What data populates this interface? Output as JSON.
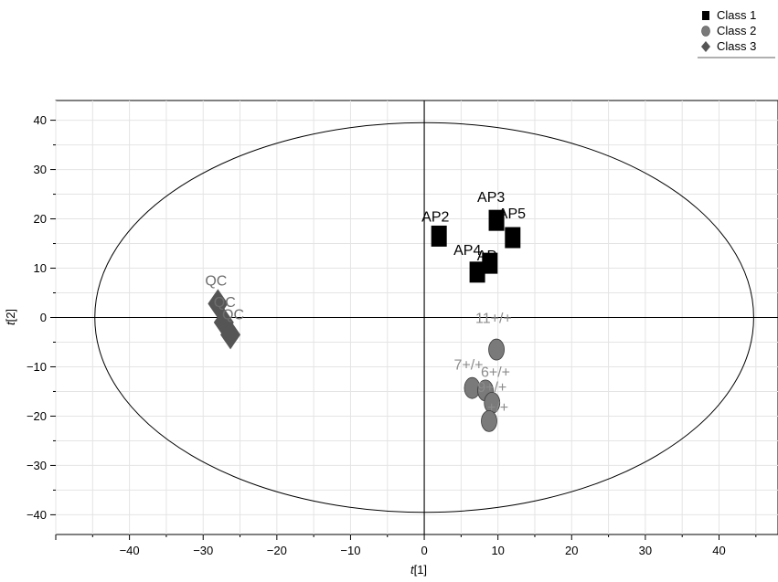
{
  "chart_data": {
    "type": "scatter",
    "title": "",
    "xlabel": "t[1]",
    "ylabel": "t[2]",
    "xlim": [
      -50,
      48
    ],
    "ylim": [
      -44,
      44
    ],
    "xticks": [
      -40,
      -30,
      -20,
      -10,
      0,
      10,
      20,
      30,
      40
    ],
    "yticks": [
      -40,
      -30,
      -20,
      -10,
      0,
      10,
      20,
      30,
      40
    ],
    "grid": true,
    "legend_position": "top-right",
    "ellipse": {
      "cx": 0,
      "cy": 0,
      "rx": 44.7,
      "ry": 39.5
    },
    "series": [
      {
        "name": "Class 1",
        "marker": "square",
        "color": "#000000",
        "points": [
          {
            "x": 2.0,
            "y": 16.5,
            "label": "AP2"
          },
          {
            "x": 9.8,
            "y": 19.7,
            "label": "AP3"
          },
          {
            "x": 12.0,
            "y": 16.2,
            "label": "AP5"
          },
          {
            "x": 8.9,
            "y": 11.0,
            "label": "AP"
          },
          {
            "x": 7.2,
            "y": 9.2,
            "label": "AP4"
          }
        ]
      },
      {
        "name": "Class 2",
        "marker": "circle",
        "color": "#7a7a7a",
        "label_color": "#8c8c8c",
        "points": [
          {
            "x": 9.8,
            "y": -6.5,
            "label": "11+/+"
          },
          {
            "x": 6.5,
            "y": -14.3,
            "label": "7+/+"
          },
          {
            "x": 8.3,
            "y": -14.8,
            "label": "6+/+"
          },
          {
            "x": 9.2,
            "y": -17.3,
            "label": "9+/+"
          },
          {
            "x": 8.8,
            "y": -21.0,
            "label": "+/+"
          }
        ]
      },
      {
        "name": "Class 3",
        "marker": "diamond",
        "color": "#555555",
        "label_color": "#6e6e6e",
        "points": [
          {
            "x": -28.0,
            "y": 2.8,
            "label": "QC"
          },
          {
            "x": -27.2,
            "y": -1.0,
            "label": "QC"
          },
          {
            "x": -26.3,
            "y": -3.5,
            "label": "QC"
          }
        ]
      }
    ]
  }
}
